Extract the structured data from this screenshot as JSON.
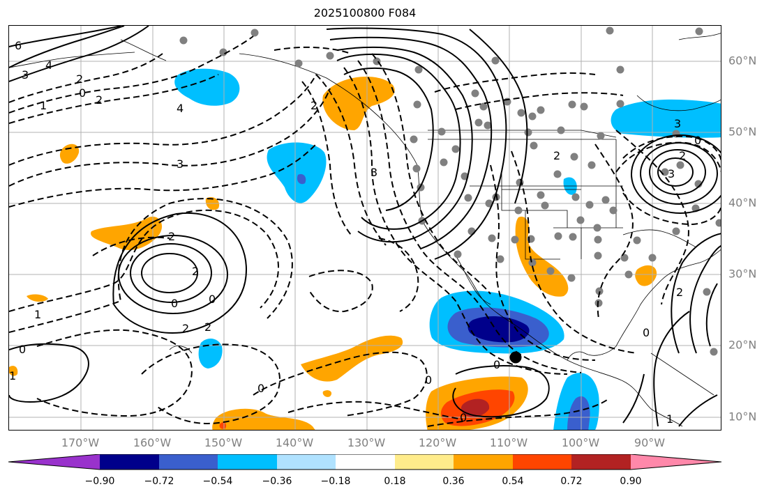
{
  "title": "2025100800 F084",
  "lon_labels": [
    "170°W",
    "160°W",
    "150°W",
    "140°W",
    "130°W",
    "120°W",
    "110°W",
    "100°W",
    "90°W"
  ],
  "lat_labels": [
    "60°N",
    "50°N",
    "40°N",
    "30°N",
    "20°N",
    "10°N"
  ],
  "colorbar": {
    "labels": [
      "−0.90",
      "−0.72",
      "−0.54",
      "−0.36",
      "−0.18",
      "0.18",
      "0.36",
      "0.54",
      "0.72",
      "0.90"
    ],
    "colors": [
      "#9932cc",
      "#00008b",
      "#3a5fcd",
      "#00bfff",
      "#b0e2ff",
      "#ffffff",
      "#ffec8b",
      "#ffa500",
      "#ff4500",
      "#b22222",
      "#ff88aa"
    ]
  },
  "contour_labels": [
    "6",
    "4",
    "3",
    "2",
    "0",
    "1",
    "2",
    "4",
    "3",
    "2",
    "2",
    "0",
    "0",
    "1",
    "2",
    "3",
    "0",
    "2",
    "0",
    "1",
    "2",
    "2",
    "0",
    "3",
    "2",
    "3",
    "0",
    "2",
    "0",
    "0",
    "0",
    "1"
  ],
  "colors": {
    "grid": "#b0b0b0",
    "dot": "#808080",
    "border": "#000000"
  }
}
